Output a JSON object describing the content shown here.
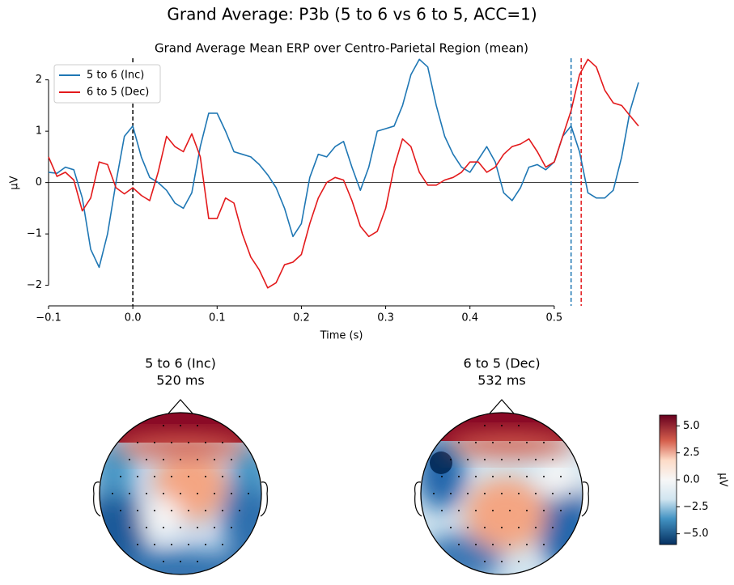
{
  "chart_data": [
    {
      "type": "line",
      "title": "Grand Average: P3b (5 to 6 vs 6 to 5, ACC=1)",
      "subtitle": "Grand Average Mean ERP over Centro-Parietal Region (mean)",
      "xlabel": "Time (s)",
      "ylabel": "µV",
      "x": [
        -0.1,
        -0.09,
        -0.08,
        -0.07,
        -0.06,
        -0.05,
        -0.04,
        -0.03,
        -0.02,
        -0.01,
        0.0,
        0.01,
        0.02,
        0.03,
        0.04,
        0.05,
        0.06,
        0.07,
        0.08,
        0.09,
        0.1,
        0.11,
        0.12,
        0.13,
        0.14,
        0.15,
        0.16,
        0.17,
        0.18,
        0.19,
        0.2,
        0.21,
        0.22,
        0.23,
        0.24,
        0.25,
        0.26,
        0.27,
        0.28,
        0.29,
        0.3,
        0.31,
        0.32,
        0.33,
        0.34,
        0.35,
        0.36,
        0.37,
        0.38,
        0.39,
        0.4,
        0.41,
        0.42,
        0.43,
        0.44,
        0.45,
        0.46,
        0.47,
        0.48,
        0.49,
        0.5,
        0.51,
        0.52,
        0.53,
        0.54,
        0.55,
        0.56,
        0.57,
        0.58,
        0.59,
        0.6
      ],
      "series": [
        {
          "name": "5 to 6 (Inc)",
          "color": "#1f77b4",
          "values": [
            0.2,
            0.18,
            0.3,
            0.25,
            -0.3,
            -1.3,
            -1.65,
            -1.0,
            0.0,
            0.9,
            1.1,
            0.5,
            0.1,
            0.0,
            -0.15,
            -0.4,
            -0.5,
            -0.2,
            0.7,
            1.35,
            1.35,
            1.0,
            0.6,
            0.55,
            0.5,
            0.35,
            0.15,
            -0.1,
            -0.5,
            -1.05,
            -0.8,
            0.1,
            0.55,
            0.5,
            0.7,
            0.8,
            0.3,
            -0.15,
            0.3,
            1.0,
            1.05,
            1.1,
            1.5,
            2.1,
            2.4,
            2.25,
            1.5,
            0.9,
            0.55,
            0.3,
            0.2,
            0.45,
            0.7,
            0.4,
            -0.2,
            -0.35,
            -0.1,
            0.3,
            0.35,
            0.25,
            0.4,
            0.9,
            1.1,
            0.6,
            -0.2,
            -0.3,
            -0.3,
            -0.15,
            0.5,
            1.4,
            1.95
          ]
        },
        {
          "name": "6 to 5 (Dec)",
          "color": "#e31a1c",
          "values": [
            0.5,
            0.12,
            0.2,
            0.05,
            -0.55,
            -0.3,
            0.4,
            0.35,
            -0.1,
            -0.22,
            -0.1,
            -0.25,
            -0.35,
            0.2,
            0.9,
            0.7,
            0.6,
            0.95,
            0.5,
            -0.7,
            -0.7,
            -0.3,
            -0.4,
            -1.0,
            -1.45,
            -1.7,
            -2.05,
            -1.95,
            -1.6,
            -1.55,
            -1.4,
            -0.8,
            -0.3,
            0.0,
            0.1,
            0.05,
            -0.35,
            -0.85,
            -1.05,
            -0.95,
            -0.5,
            0.3,
            0.85,
            0.7,
            0.2,
            -0.05,
            -0.05,
            0.05,
            0.1,
            0.2,
            0.4,
            0.4,
            0.2,
            0.3,
            0.55,
            0.7,
            0.75,
            0.85,
            0.6,
            0.3,
            0.4,
            0.9,
            1.4,
            2.1,
            2.4,
            2.25,
            1.8,
            1.55,
            1.5,
            1.3,
            1.1
          ]
        }
      ],
      "vlines": [
        {
          "value": 0,
          "color": "#000000"
        },
        {
          "value": 0.52,
          "color": "#1f77b4"
        },
        {
          "value": 0.532,
          "color": "#e31a1c"
        }
      ],
      "xlim": [
        -0.1,
        0.6
      ],
      "ylim": [
        -2.4,
        2.42
      ],
      "xticks": [
        {
          "value": -0.1,
          "label": "−0.1"
        },
        {
          "value": 0,
          "label": "0.0"
        },
        0.1,
        0.2,
        0.3,
        0.4,
        0.5
      ],
      "yticks": [
        {
          "value": -2,
          "label": "−2"
        },
        {
          "value": -1,
          "label": "−1"
        },
        0,
        1,
        2
      ],
      "legend": "upper left",
      "grid": false
    },
    {
      "type": "topomap",
      "maps": [
        {
          "title": "5 to 6 (Inc)",
          "time_label": "520 ms",
          "color": "#1f77b4"
        },
        {
          "title": "6 to 5 (Dec)",
          "time_label": "532 ms",
          "color": "#e31a1c"
        }
      ],
      "colorbar_label": "µV",
      "clim": [
        -6,
        6
      ],
      "colorbar_ticks": [
        {
          "value": 5,
          "label": "5.0"
        },
        {
          "value": 2.5,
          "label": "2.5"
        },
        {
          "value": 0,
          "label": "0.0"
        },
        {
          "value": -2.5,
          "label": "−2.5"
        },
        {
          "value": -5,
          "label": "−5.0"
        }
      ]
    }
  ]
}
